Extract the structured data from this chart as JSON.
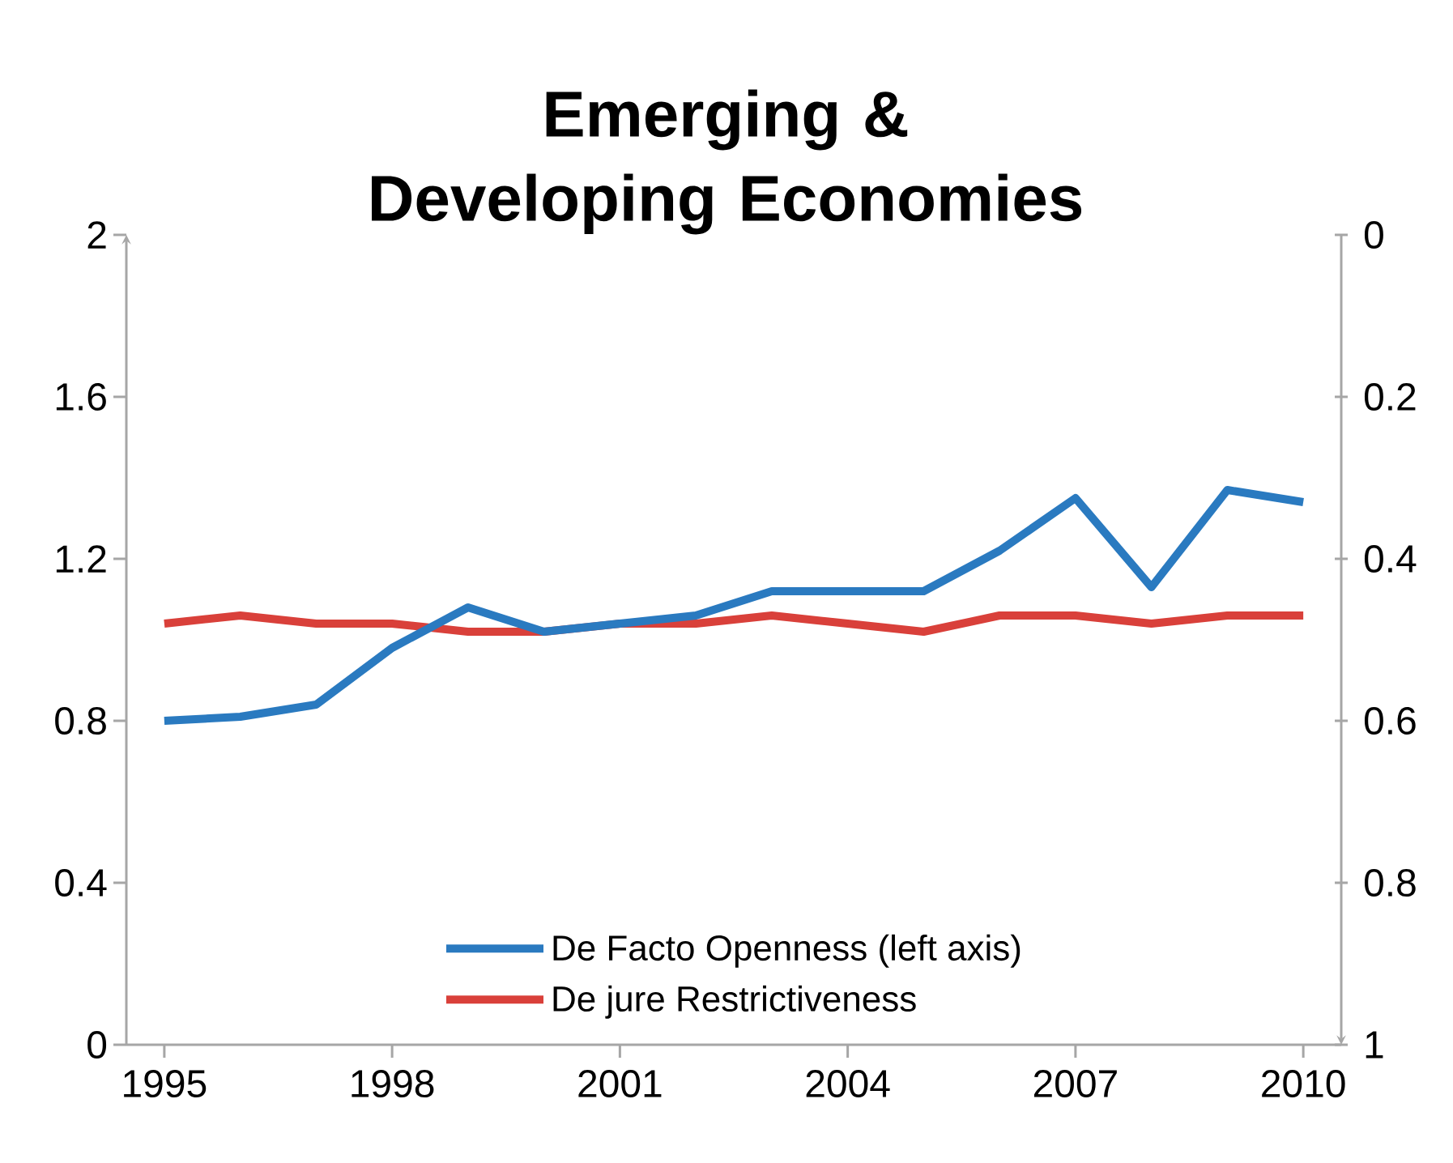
{
  "chart_data": {
    "type": "line",
    "title": "Emerging & Developing Economies",
    "x": [
      1995,
      1996,
      1997,
      1998,
      1999,
      2000,
      2001,
      2002,
      2003,
      2004,
      2005,
      2006,
      2007,
      2008,
      2009,
      2010
    ],
    "xlim": [
      1994.5,
      2010.5
    ],
    "xticks": [
      1995,
      1998,
      2001,
      2004,
      2007,
      2010
    ],
    "ylim": [
      0,
      2
    ],
    "yticks": [
      0,
      0.4,
      0.8,
      1.2,
      1.6,
      2
    ],
    "y2lim": [
      1,
      0
    ],
    "y2ticks": [
      0,
      0.2,
      0.4,
      0.6,
      0.8,
      1
    ],
    "legend": "bottom",
    "grid": false,
    "marker": "none",
    "line_style": "solid",
    "series": [
      {
        "name": "De Facto Openness    (left axis)",
        "color": "#2a7ac0",
        "values": [
          0.8,
          0.81,
          0.84,
          0.98,
          1.08,
          1.02,
          1.04,
          1.06,
          1.12,
          1.12,
          1.12,
          1.22,
          1.35,
          1.13,
          1.37,
          1.34
        ]
      },
      {
        "name": "De jure Restrictiveness",
        "color": "#d9403a",
        "axis": "y2",
        "values": [
          0.48,
          0.47,
          0.48,
          0.48,
          0.49,
          0.49,
          0.48,
          0.48,
          0.47,
          0.48,
          0.49,
          0.47,
          0.47,
          0.48,
          0.47,
          0.47
        ]
      }
    ]
  }
}
